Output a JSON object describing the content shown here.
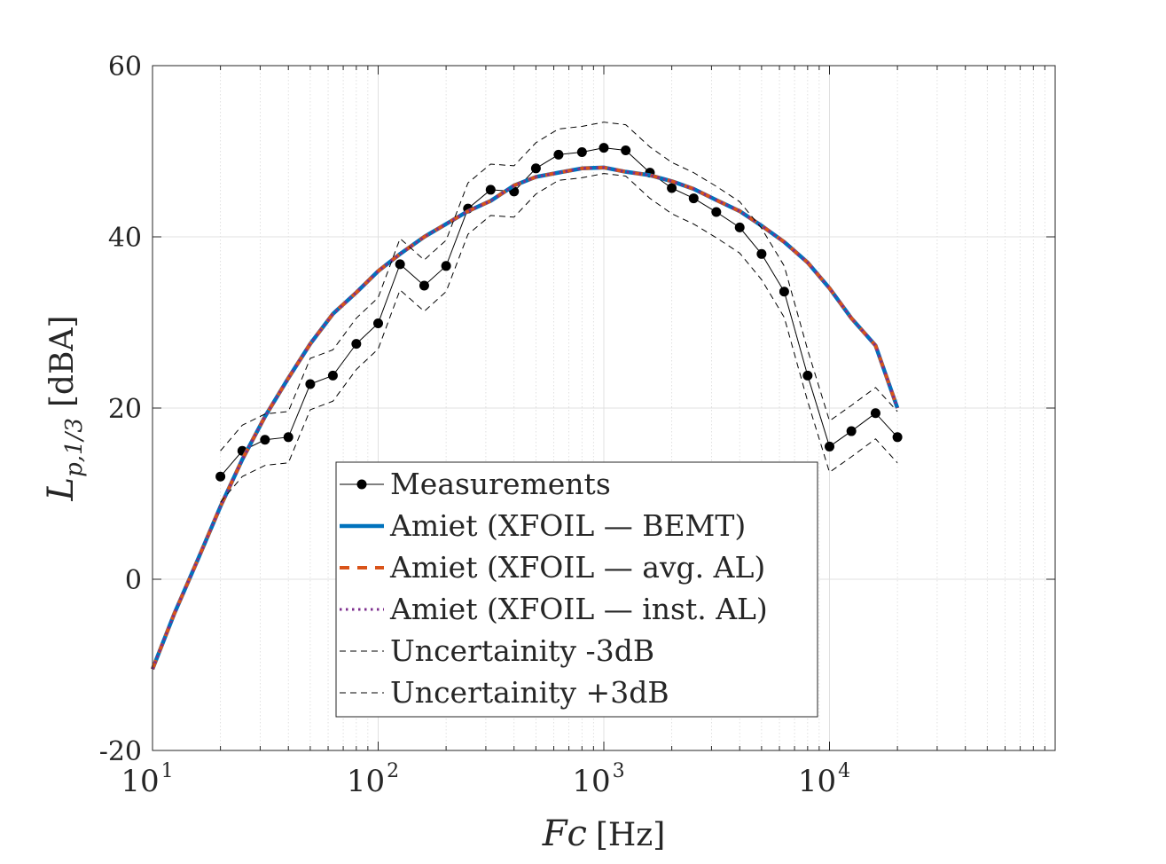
{
  "chart_data": {
    "type": "line",
    "xscale": "log",
    "xlim": [
      10,
      100000
    ],
    "ylim": [
      -20,
      60
    ],
    "grid": true,
    "legend_position": "bottom-center",
    "xlabel": {
      "main": "Fc",
      "unit": "[Hz]"
    },
    "ylabel": {
      "main": "L",
      "sub": "p,1/3",
      "unit": "[dBA]"
    },
    "x_ticks": [
      {
        "base": "10",
        "exp": "1",
        "value": 10
      },
      {
        "base": "10",
        "exp": "2",
        "value": 100
      },
      {
        "base": "10",
        "exp": "3",
        "value": 1000
      },
      {
        "base": "10",
        "exp": "4",
        "value": 10000
      }
    ],
    "y_ticks": [
      {
        "label": "-20",
        "value": -20
      },
      {
        "label": "0",
        "value": 0
      },
      {
        "label": "20",
        "value": 20
      },
      {
        "label": "40",
        "value": 40
      },
      {
        "label": "60",
        "value": 60
      }
    ],
    "series": [
      {
        "name": "Measurements",
        "color": "#000000",
        "style": "solid-marker",
        "x": [
          20,
          25,
          31.5,
          40,
          50,
          63,
          80,
          100,
          125,
          160,
          200,
          250,
          315,
          400,
          500,
          630,
          800,
          1000,
          1250,
          1600,
          2000,
          2500,
          3150,
          4000,
          5000,
          6300,
          8000,
          10000,
          12500,
          16000,
          20000
        ],
        "y": [
          12,
          15,
          16.3,
          16.6,
          22.8,
          23.8,
          27.5,
          29.9,
          36.8,
          34.3,
          36.6,
          43.3,
          45.5,
          45.3,
          48,
          49.6,
          49.9,
          50.4,
          50.1,
          47.5,
          45.7,
          44.5,
          42.9,
          41.1,
          38,
          33.6,
          23.8,
          15.5,
          17.3,
          19.4,
          16.6
        ]
      },
      {
        "name": "Amiet (XFOIL — BEMT)",
        "color": "#0072BD",
        "style": "solid",
        "x": [
          10,
          12.5,
          16,
          20,
          25,
          31.5,
          40,
          50,
          63,
          80,
          100,
          125,
          160,
          200,
          250,
          315,
          400,
          500,
          630,
          800,
          1000,
          1250,
          1600,
          2000,
          2500,
          3150,
          4000,
          5000,
          6300,
          8000,
          10000,
          12500,
          16000,
          20000
        ],
        "y": [
          -10.5,
          -4,
          2.5,
          8.5,
          14,
          19,
          23.5,
          27.5,
          31,
          33.5,
          36,
          38,
          40,
          41.5,
          43,
          44.2,
          46,
          47,
          47.5,
          48,
          48.1,
          47.6,
          47.2,
          46.5,
          45.6,
          44.3,
          43,
          41.3,
          39.4,
          37,
          34,
          30.5,
          27.3,
          20
        ],
        "line_width": 4.5
      },
      {
        "name": "Amiet (XFOIL — avg. AL)",
        "color": "#D95319",
        "style": "dashed",
        "x": [
          10,
          12.5,
          16,
          20,
          25,
          31.5,
          40,
          50,
          63,
          80,
          100,
          125,
          160,
          200,
          250,
          315,
          400,
          500,
          630,
          800,
          1000,
          1250,
          1600,
          2000,
          2500,
          3150,
          4000,
          5000,
          6300,
          8000,
          10000,
          12500,
          16000,
          20000
        ],
        "y": [
          -10.5,
          -4,
          2.5,
          8.5,
          14,
          19,
          23.5,
          27.5,
          31,
          33.5,
          36,
          38,
          40,
          41.5,
          43,
          44.2,
          46,
          47,
          47.5,
          48,
          48.1,
          47.6,
          47.2,
          46.5,
          45.6,
          44.3,
          43,
          41.3,
          39.4,
          37,
          34,
          30.5,
          27.3,
          20
        ],
        "line_width": 4
      },
      {
        "name": "Amiet (XFOIL — inst. AL)",
        "color": "#7E2F8E",
        "style": "dotted",
        "x": [
          10,
          12.5,
          16,
          20,
          25,
          31.5,
          40,
          50,
          63,
          80,
          100,
          125,
          160,
          200,
          250,
          315,
          400,
          500,
          630,
          800,
          1000,
          1250,
          1600,
          2000,
          2500,
          3150,
          4000,
          5000,
          6300,
          8000,
          10000,
          12500,
          16000,
          20000
        ],
        "y": [
          -10.5,
          -4,
          2.5,
          8.5,
          14,
          19,
          23.5,
          27.5,
          31,
          33.5,
          36,
          38,
          40,
          41.5,
          43,
          44.2,
          46,
          47,
          47.5,
          48,
          48.1,
          47.6,
          47.2,
          46.5,
          45.6,
          44.3,
          43,
          41.3,
          39.4,
          37,
          34,
          30.5,
          27.3,
          20
        ],
        "line_width": 3
      },
      {
        "name": "Uncertainity -3dB",
        "color": "#000000",
        "style": "thin-dashed",
        "x": [
          20,
          25,
          31.5,
          40,
          50,
          63,
          80,
          100,
          125,
          160,
          200,
          250,
          315,
          400,
          500,
          630,
          800,
          1000,
          1250,
          1600,
          2000,
          2500,
          3150,
          4000,
          5000,
          6300,
          8000,
          10000,
          12500,
          16000,
          20000
        ],
        "y": [
          9,
          12,
          13.3,
          13.6,
          19.8,
          20.8,
          24.5,
          26.9,
          33.8,
          31.3,
          33.6,
          40.3,
          42.5,
          42.3,
          45,
          46.6,
          46.9,
          47.4,
          47.1,
          44.5,
          42.7,
          41.5,
          39.9,
          38.1,
          35,
          30.6,
          20.8,
          12.5,
          14.3,
          16.4,
          13.6
        ]
      },
      {
        "name": "Uncertainity +3dB",
        "color": "#000000",
        "style": "thin-dashed",
        "x": [
          20,
          25,
          31.5,
          40,
          50,
          63,
          80,
          100,
          125,
          160,
          200,
          250,
          315,
          400,
          500,
          630,
          800,
          1000,
          1250,
          1600,
          2000,
          2500,
          3150,
          4000,
          5000,
          6300,
          8000,
          10000,
          12500,
          16000,
          20000
        ],
        "y": [
          15,
          18,
          19.3,
          19.6,
          25.8,
          26.8,
          30.5,
          32.9,
          39.8,
          37.3,
          39.6,
          46.3,
          48.5,
          48.3,
          51,
          52.6,
          52.9,
          53.4,
          53.1,
          50.5,
          48.7,
          47.5,
          45.9,
          44.1,
          41,
          36.6,
          26.8,
          18.5,
          20.3,
          22.4,
          19.6
        ]
      }
    ]
  }
}
